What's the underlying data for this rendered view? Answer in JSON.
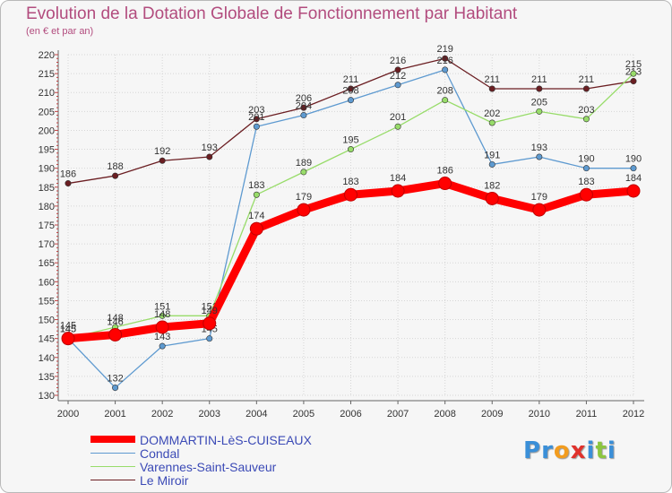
{
  "chart_data": {
    "type": "line",
    "title": "Evolution de la Dotation Globale de Fonctionnement par Habitant",
    "subtitle": "(en € et par an)",
    "x": [
      "2000",
      "2001",
      "2002",
      "2003",
      "2004",
      "2005",
      "2006",
      "2007",
      "2008",
      "2009",
      "2010",
      "2011",
      "2012"
    ],
    "ylim": [
      130,
      220
    ],
    "ytick_step": 5,
    "grid": true,
    "series": [
      {
        "name": "Le Miroir",
        "color": "#6b1e22",
        "values": [
          186,
          188,
          192,
          193,
          203,
          206,
          211,
          216,
          219,
          211,
          211,
          211,
          213
        ],
        "labels": [
          "186",
          "188",
          "192",
          "193",
          "203",
          "206",
          "211",
          "216",
          "219",
          "211",
          "211",
          "211",
          "213"
        ]
      },
      {
        "name": "Condal",
        "color": "#5e9ad0",
        "values": [
          145,
          132,
          143,
          145,
          201,
          204,
          208,
          212,
          216,
          191,
          193,
          190,
          190
        ],
        "labels": [
          "145",
          "132",
          "143",
          "145",
          "201",
          "204",
          "208",
          "212",
          "216",
          "191",
          "193",
          "190",
          "190"
        ]
      },
      {
        "name": "Varennes-Saint-Sauveur",
        "color": "#98dc6a",
        "values": [
          145,
          148,
          151,
          151,
          183,
          189,
          195,
          201,
          208,
          202,
          205,
          203,
          215
        ],
        "labels": [
          "145",
          "148",
          "151",
          "151",
          "183",
          "189",
          "195",
          "201",
          "208",
          "202",
          "205",
          "203",
          "215"
        ]
      },
      {
        "name": "DOMMARTIN-LèS-CUISEAUX",
        "color": "#ff0000",
        "values": [
          145,
          146,
          148,
          149,
          174,
          179,
          183,
          184,
          186,
          182,
          179,
          183,
          184
        ],
        "labels": [
          "145",
          "146",
          "148",
          "149",
          "174",
          "179",
          "183",
          "184",
          "186",
          "182",
          "179",
          "183",
          "184"
        ]
      }
    ],
    "legend_order": [
      "DOMMARTIN-LèS-CUISEAUX",
      "Condal",
      "Varennes-Saint-Sauveur",
      "Le Miroir"
    ]
  },
  "brand": {
    "letters": [
      "P",
      "r",
      "o",
      "x",
      "i",
      "t",
      "i"
    ],
    "colors": [
      "#3a8fd8",
      "#3a8fd8",
      "#f29c1f",
      "#e0322c",
      "#3a8fd8",
      "#8cc63f",
      "#3a8fd8"
    ]
  }
}
